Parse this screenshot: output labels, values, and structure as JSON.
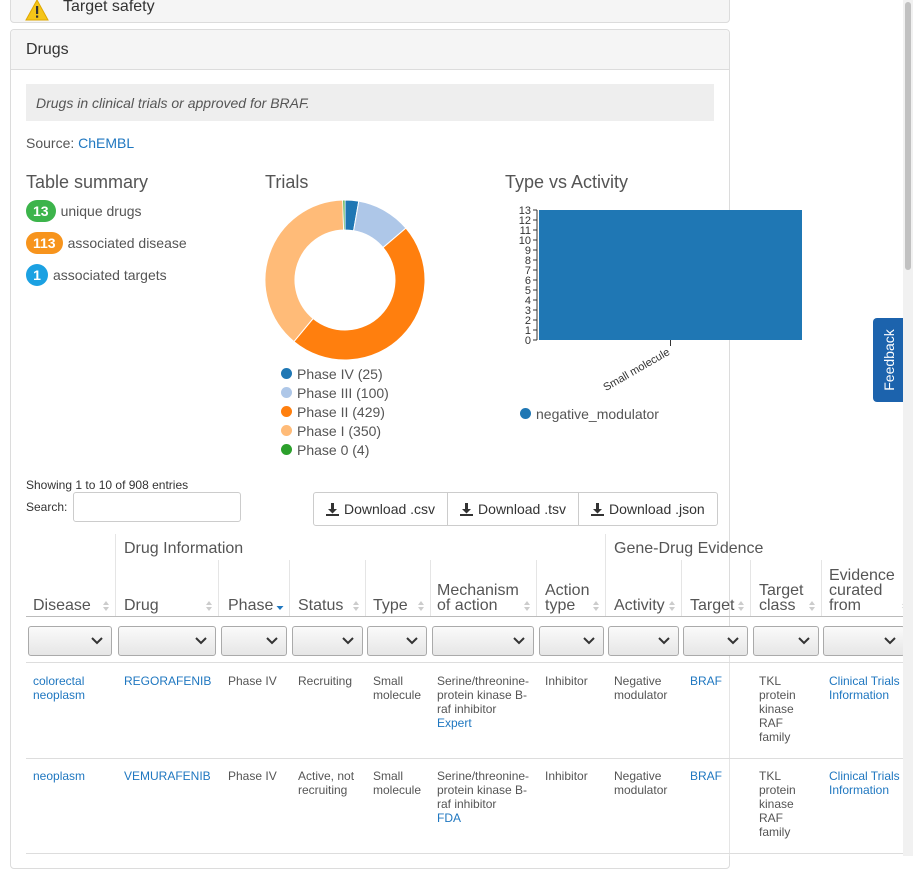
{
  "top_panel": {
    "title": "Target safety"
  },
  "drugs_panel": {
    "title": "Drugs",
    "description": "Drugs in clinical trials or approved for BRAF.",
    "source_label": "Source:",
    "source_link": "ChEMBL"
  },
  "summary": {
    "title": "Table summary",
    "rows": [
      {
        "count": "13",
        "label": "unique drugs",
        "color": "#3cb44b"
      },
      {
        "count": "113",
        "label": "associated disease",
        "color": "#f7941d"
      },
      {
        "count": "1",
        "label": "associated targets",
        "color": "#1ba1e2"
      }
    ]
  },
  "trials": {
    "title": "Trials",
    "legend": [
      {
        "label": "Phase IV (25)",
        "color": "#1f77b4"
      },
      {
        "label": "Phase III (100)",
        "color": "#aec7e8"
      },
      {
        "label": "Phase II (429)",
        "color": "#ff7f0e"
      },
      {
        "label": "Phase I (350)",
        "color": "#ffbb78"
      },
      {
        "label": "Phase 0 (4)",
        "color": "#2ca02c"
      }
    ]
  },
  "type_vs_activity": {
    "title": "Type vs Activity",
    "legend": "negative_modulator",
    "color": "#1f77b4"
  },
  "chart_data": [
    {
      "type": "pie",
      "title": "Trials",
      "categories": [
        "Phase IV",
        "Phase III",
        "Phase II",
        "Phase I",
        "Phase 0"
      ],
      "values": [
        25,
        100,
        429,
        350,
        4
      ],
      "colors": [
        "#1f77b4",
        "#aec7e8",
        "#ff7f0e",
        "#ffbb78",
        "#2ca02c"
      ],
      "donut": true
    },
    {
      "type": "bar",
      "title": "Type vs Activity",
      "categories": [
        "Small molecule"
      ],
      "series": [
        {
          "name": "negative_modulator",
          "values": [
            13
          ]
        }
      ],
      "ylim": [
        0,
        13
      ],
      "yticks": [
        "0",
        "1",
        "2",
        "3",
        "4",
        "5",
        "6",
        "7",
        "8",
        "9",
        "10",
        "11",
        "12",
        "13"
      ]
    }
  ],
  "table": {
    "info": "Showing 1 to 10 of 908 entries",
    "search_label": "Search:",
    "downloads": [
      "Download .csv",
      "Download .tsv",
      "Download .json"
    ],
    "groups": {
      "drug_info": "Drug Information",
      "evidence": "Gene-Drug Evidence"
    },
    "columns": [
      "Disease",
      "Drug",
      "Phase",
      "Status",
      "Type",
      "Mechanism of action",
      "Action type",
      "Activity",
      "Target",
      "Target class",
      "Evidence curated from"
    ],
    "rows": [
      {
        "disease": "colorectal neoplasm",
        "drug": "REGORAFENIB",
        "phase": "Phase IV",
        "status": "Recruiting",
        "type": "Small molecule",
        "mechanism": "Serine/threonine-protein kinase B-raf inhibitor",
        "mechanism_link": "Expert",
        "action": "Inhibitor",
        "activity": "Negative modulator",
        "target": "BRAF",
        "target_class": "TKL protein kinase RAF family",
        "evidence": "Clinical Trials Information"
      },
      {
        "disease": "neoplasm",
        "drug": "VEMURAFENIB",
        "phase": "Phase IV",
        "status": "Active, not recruiting",
        "type": "Small molecule",
        "mechanism": "Serine/threonine-protein kinase B-raf inhibitor",
        "mechanism_link": "FDA",
        "action": "Inhibitor",
        "activity": "Negative modulator",
        "target": "BRAF",
        "target_class": "TKL protein kinase RAF family",
        "evidence": "Clinical Trials Information"
      }
    ]
  },
  "feedback": {
    "label": "Feedback"
  }
}
